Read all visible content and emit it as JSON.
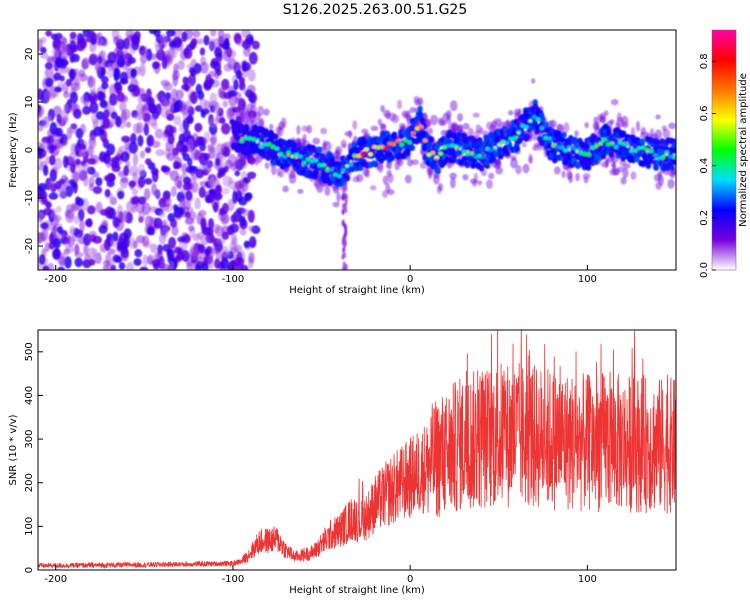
{
  "title": "S126.2025.263.00.51.G25",
  "colors": {
    "snr_line": "#ee3333",
    "background": "#ffffff",
    "axis": "#000000",
    "colormap": [
      "#ffffff",
      "#7700dd",
      "#0000ff",
      "#00ddff",
      "#00ff00",
      "#ffff00",
      "#ff7700",
      "#ff0000",
      "#ff00aa"
    ]
  },
  "chart_data": [
    {
      "id": "spectrogram",
      "type": "heatmap",
      "xlabel": "Height of straight line (km)",
      "ylabel": "Frequency (Hz)",
      "xlim": [
        -210,
        150
      ],
      "ylim": [
        -25,
        25
      ],
      "xticks": [
        -200,
        -100,
        0,
        100
      ],
      "yticks": [
        -20,
        -10,
        0,
        10,
        20
      ],
      "colorbar": {
        "label": "Normalized spectral amplitude",
        "range": [
          0,
          0.92
        ],
        "ticks": [
          0.0,
          0.2,
          0.4,
          0.6,
          0.8
        ]
      },
      "ridge": {
        "description": "Dominant frequency ridge (Hz) vs height (km)",
        "x": [
          -100,
          -90,
          -80,
          -70,
          -60,
          -50,
          -40,
          -35,
          -30,
          -20,
          -10,
          0,
          5,
          10,
          15,
          20,
          30,
          40,
          50,
          60,
          65,
          70,
          75,
          80,
          90,
          100,
          110,
          120,
          130,
          140,
          150
        ],
        "y": [
          3,
          2,
          1,
          -1,
          -2,
          -3,
          -5,
          -3,
          -1,
          0,
          1,
          2,
          6,
          0,
          -2,
          1,
          0,
          -1,
          1,
          3,
          5,
          7,
          4,
          1,
          0,
          -1,
          2,
          1,
          0,
          -1,
          -1
        ]
      },
      "noise_region": [
        -210,
        -95
      ]
    },
    {
      "id": "snr",
      "type": "line",
      "xlabel": "Height of straight line (km)",
      "ylabel": "SNR (10 * v/v)",
      "xlim": [
        -210,
        150
      ],
      "ylim": [
        0,
        550
      ],
      "xticks": [
        -200,
        -100,
        0,
        100
      ],
      "yticks": [
        0,
        100,
        200,
        300,
        400,
        500
      ],
      "envelope": {
        "description": "Approximate SNR mean level (data units) vs height (km)",
        "x": [
          -210,
          -150,
          -100,
          -95,
          -90,
          -85,
          -75,
          -70,
          -65,
          -55,
          -50,
          -45,
          -40,
          -35,
          -32,
          -28,
          -25,
          -20,
          -10,
          0,
          10,
          20,
          30,
          40,
          50,
          60,
          70,
          80,
          90,
          100,
          110,
          120,
          130,
          140,
          150
        ],
        "y": [
          10,
          12,
          15,
          20,
          40,
          65,
          70,
          45,
          30,
          40,
          60,
          80,
          90,
          110,
          120,
          110,
          120,
          150,
          185,
          210,
          240,
          270,
          290,
          300,
          310,
          310,
          305,
          300,
          295,
          290,
          295,
          290,
          290,
          285,
          285
        ]
      }
    }
  ]
}
